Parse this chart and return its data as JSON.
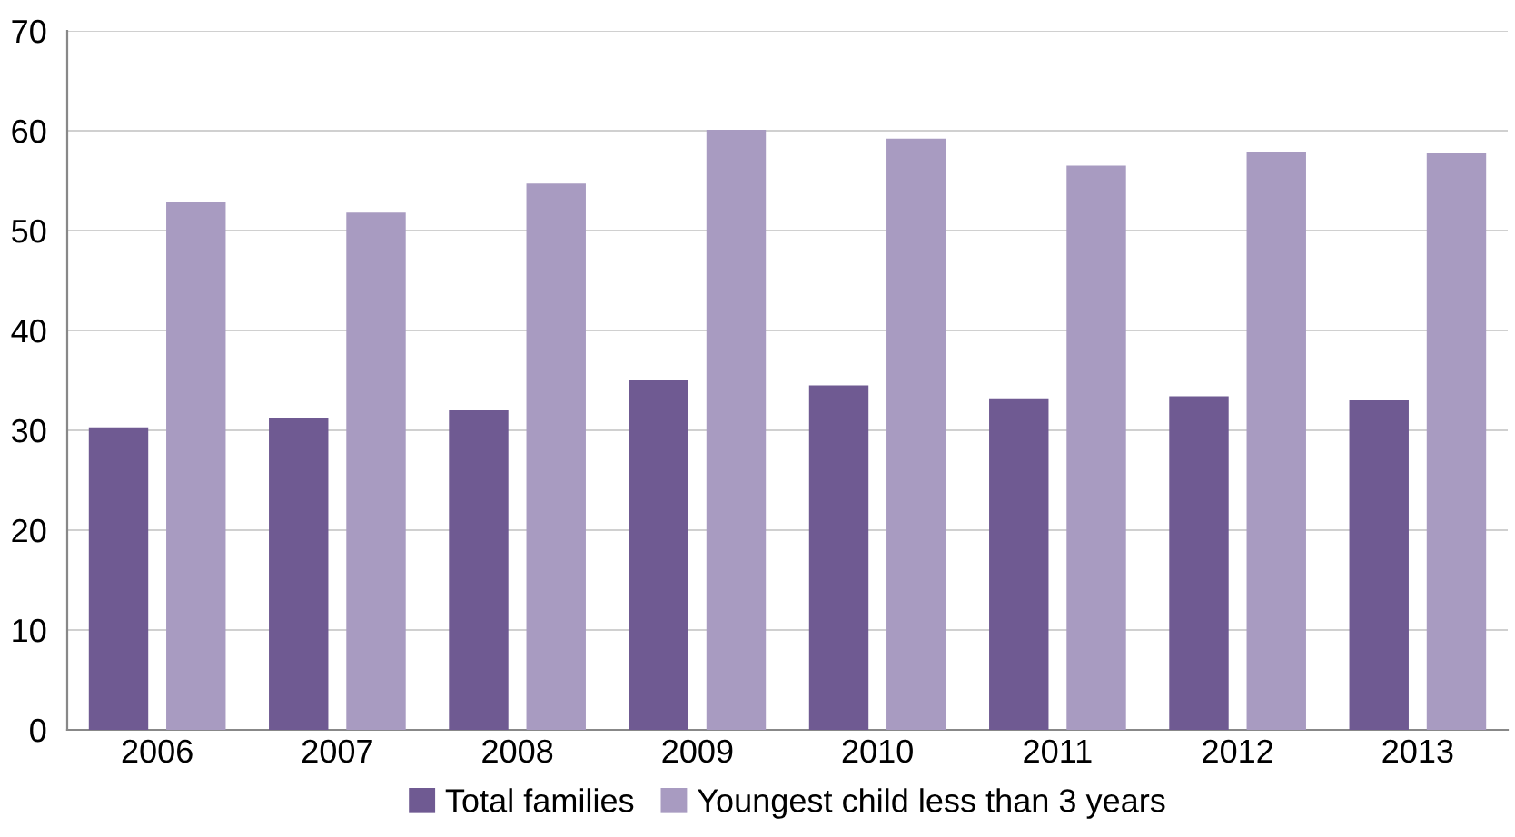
{
  "chart_data": {
    "type": "bar",
    "categories": [
      "2006",
      "2007",
      "2008",
      "2009",
      "2010",
      "2011",
      "2012",
      "2013"
    ],
    "series": [
      {
        "name": "Total families",
        "color": "#6f5a92",
        "values": [
          30.3,
          31.2,
          32.0,
          35.0,
          34.5,
          33.2,
          33.4,
          33.0
        ]
      },
      {
        "name": "Youngest child less than 3 years",
        "color": "#a89bc1",
        "values": [
          52.9,
          51.8,
          54.7,
          60.1,
          59.2,
          56.5,
          57.9,
          57.8
        ]
      }
    ],
    "ylim": [
      0,
      70
    ],
    "yticks": [
      0,
      10,
      20,
      30,
      40,
      50,
      60,
      70
    ],
    "grid": "y",
    "legend": "bottom"
  }
}
